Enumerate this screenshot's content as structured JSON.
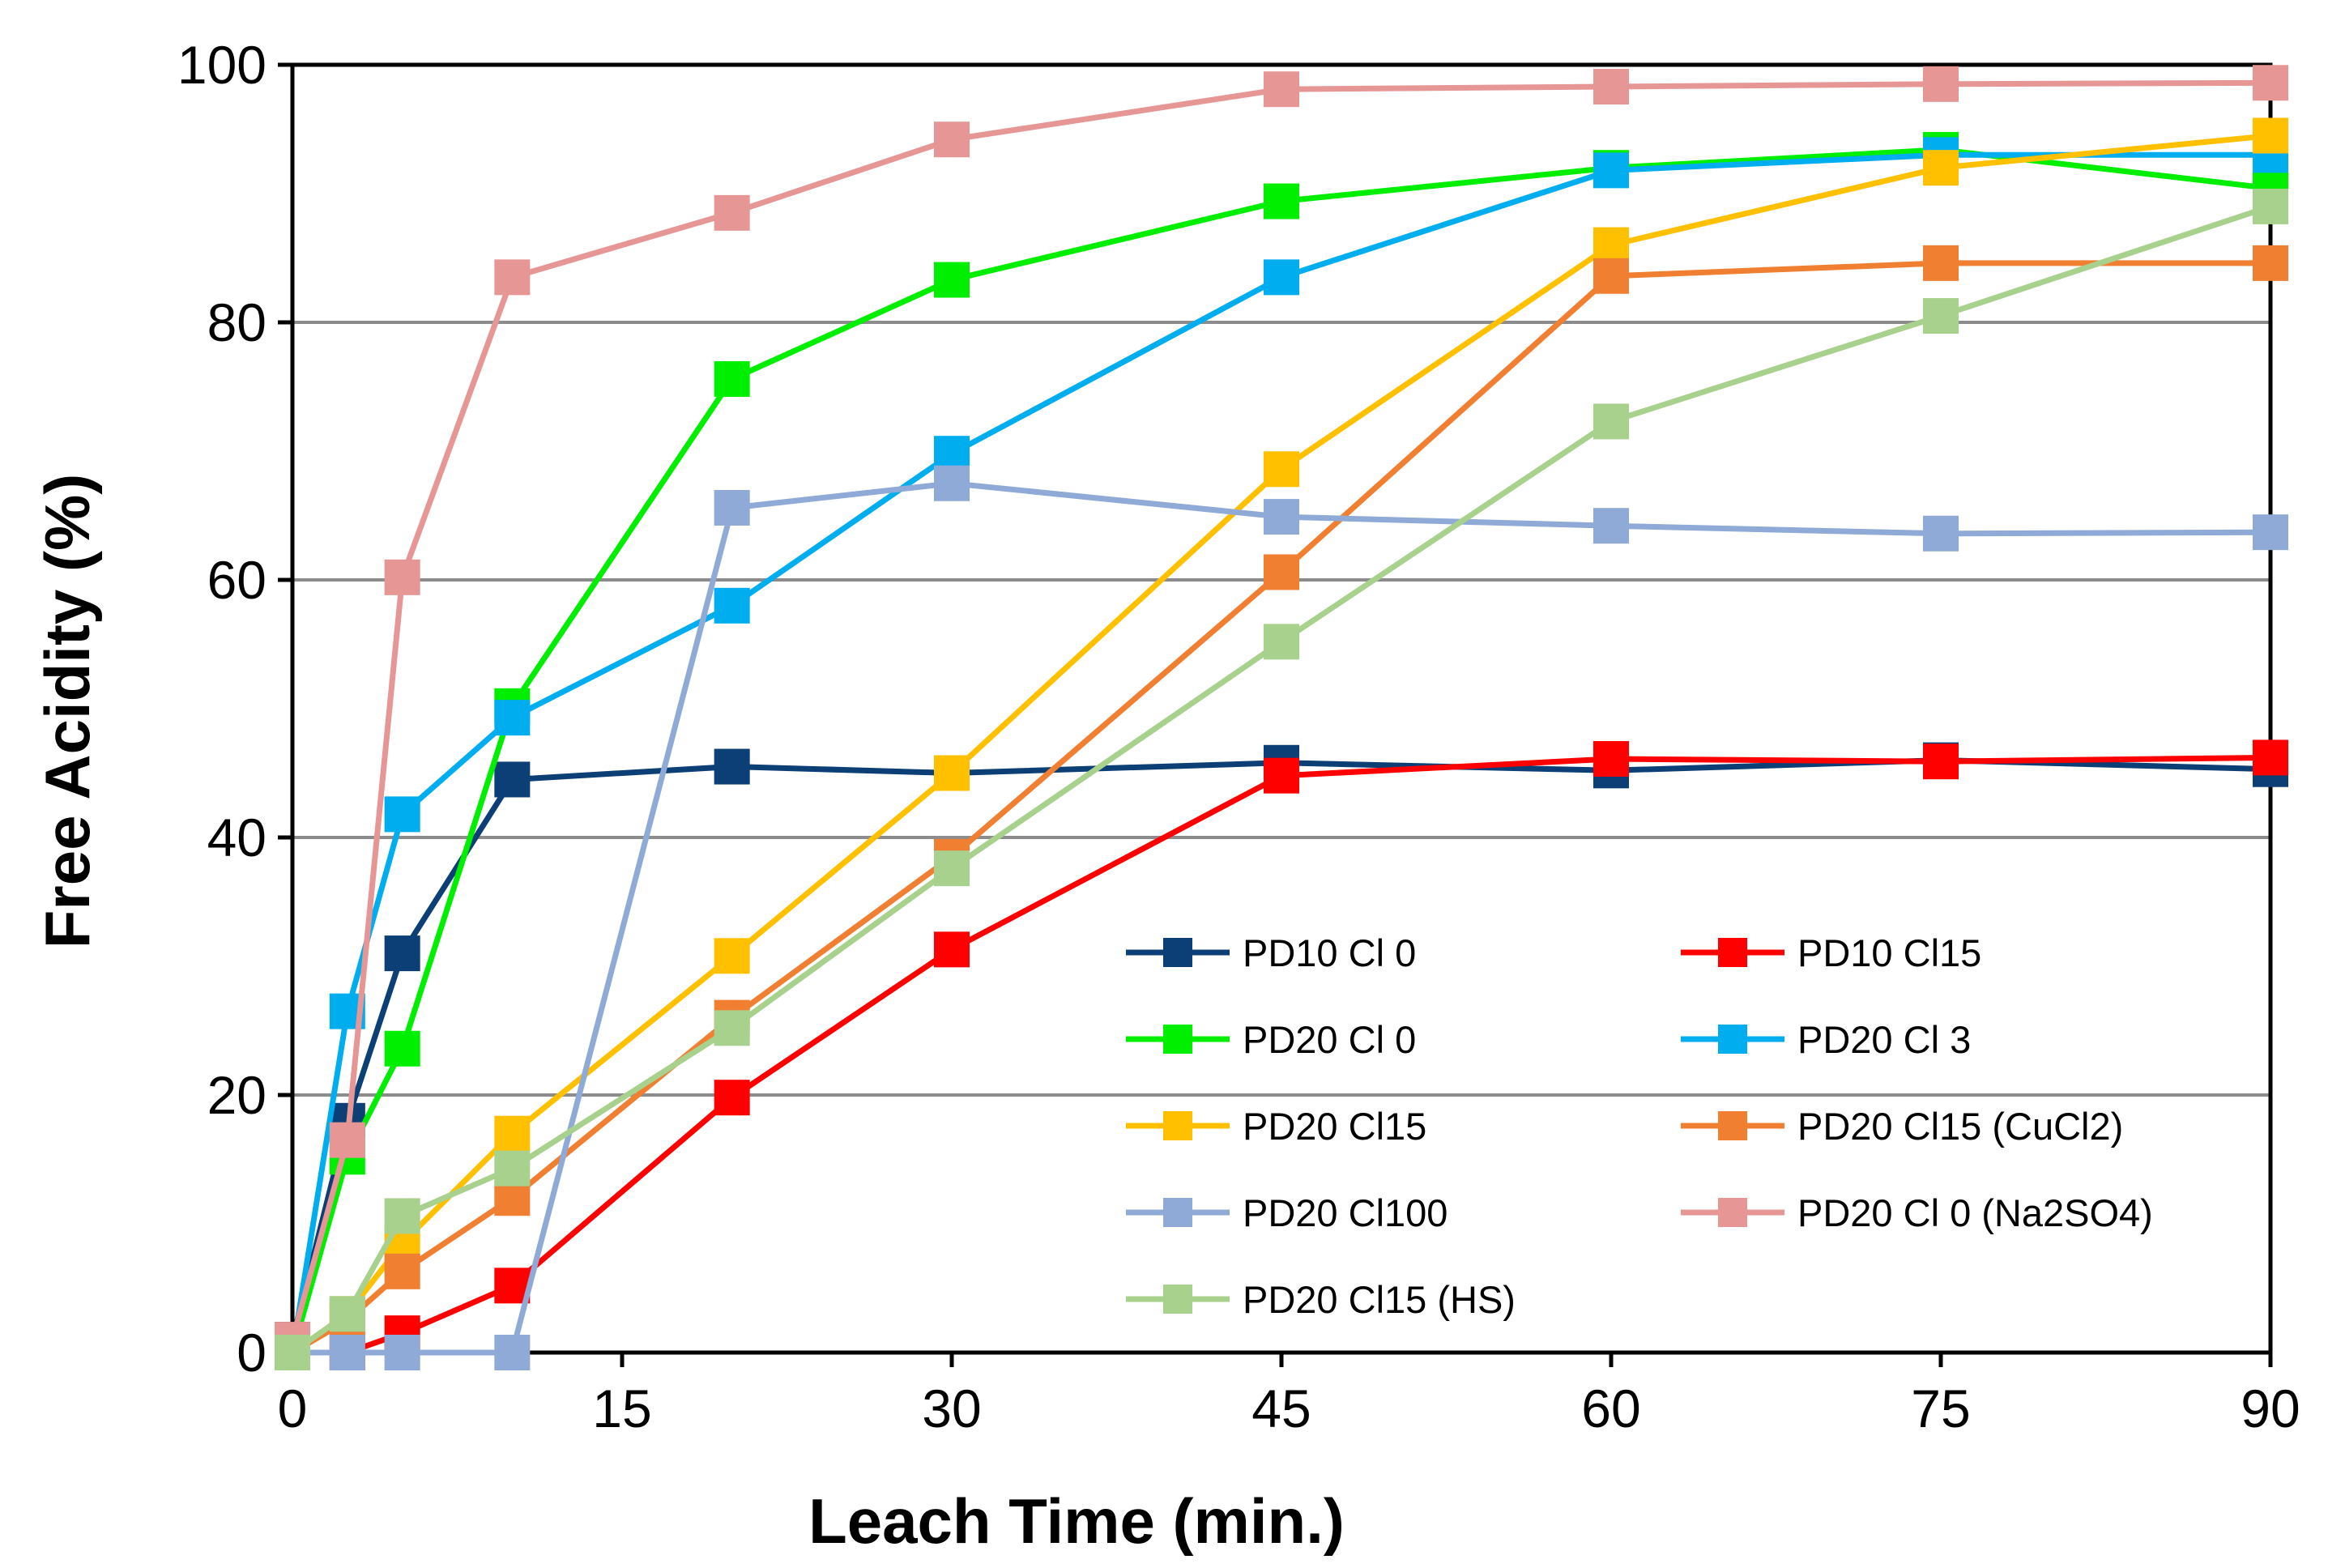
{
  "chart_data": {
    "type": "line",
    "title": "",
    "xlabel": "Leach Time (min.)",
    "ylabel": "Free Acidity (%)",
    "xlim": [
      0,
      90
    ],
    "ylim": [
      0,
      100
    ],
    "xticks": [
      0,
      15,
      30,
      45,
      60,
      75,
      90
    ],
    "yticks": [
      0,
      20,
      40,
      60,
      80,
      100
    ],
    "xtick_labels": [
      "0",
      "15",
      "30",
      "45",
      "60",
      "75",
      "90"
    ],
    "ytick_labels": [
      "0",
      "20",
      "40",
      "60",
      "80",
      "100"
    ],
    "grid": "horizontal",
    "legend_position": "bottom-right",
    "series": [
      {
        "name": "PD10 Cl 0",
        "color": "#0b3f75",
        "x": [
          0,
          2.5,
          5,
          10,
          20,
          30,
          45,
          60,
          75,
          90
        ],
        "y": [
          1,
          18,
          31,
          44.5,
          45.5,
          45,
          45.8,
          45.2,
          46,
          45.3
        ]
      },
      {
        "name": "PD10 Cl15",
        "color": "#ff0000",
        "x": [
          0,
          2.5,
          5,
          10,
          20,
          30,
          45,
          60,
          75,
          90
        ],
        "y": [
          0,
          0,
          1.5,
          5.2,
          19.8,
          31.3,
          44.8,
          46.1,
          45.9,
          46.2
        ]
      },
      {
        "name": "PD20 Cl 0",
        "color": "#00ee00",
        "x": [
          0,
          2.5,
          5,
          10,
          20,
          30,
          45,
          60,
          75,
          90
        ],
        "y": [
          0,
          15.2,
          23.6,
          50.2,
          75.6,
          83.3,
          89.4,
          92,
          93.4,
          90.4
        ]
      },
      {
        "name": "PD20 Cl 3",
        "color": "#00aeef",
        "x": [
          0,
          2.5,
          5,
          10,
          20,
          30,
          45,
          60,
          75,
          90
        ],
        "y": [
          0,
          26.5,
          41.8,
          49.3,
          58,
          69.8,
          83.5,
          91.8,
          93,
          93
        ]
      },
      {
        "name": "PD20 Cl15",
        "color": "#ffc000",
        "x": [
          0,
          2.5,
          5,
          10,
          20,
          30,
          45,
          60,
          75,
          90
        ],
        "y": [
          0,
          3,
          8.5,
          17,
          30.8,
          45,
          68.6,
          86,
          92,
          94.5
        ]
      },
      {
        "name": "PD20 Cl15 (CuCl2)",
        "color": "#f07f32",
        "x": [
          0,
          2.5,
          5,
          10,
          20,
          30,
          45,
          60,
          75,
          90
        ],
        "y": [
          0,
          2.5,
          6.3,
          12,
          26,
          38.5,
          60.6,
          83.6,
          84.6,
          84.6
        ]
      },
      {
        "name": "PD20 Cl100",
        "color": "#8faad6",
        "x": [
          0,
          2.5,
          5,
          10,
          20,
          30,
          45,
          60,
          75,
          90
        ],
        "y": [
          0,
          0,
          0,
          0,
          65.6,
          67.5,
          64.9,
          64.2,
          63.6,
          63.7
        ]
      },
      {
        "name": "PD20 Cl 0 (Na2SO4)",
        "color": "#e59695",
        "x": [
          0,
          2.5,
          5,
          10,
          20,
          30,
          45,
          60,
          75,
          90
        ],
        "y": [
          1,
          16.5,
          60.2,
          83.5,
          88.5,
          94.2,
          98.1,
          98.3,
          98.5,
          98.6
        ]
      },
      {
        "name": "PD20 Cl15 (HS)",
        "color": "#a9d18e",
        "x": [
          0,
          2.5,
          5,
          10,
          20,
          30,
          45,
          60,
          75,
          90
        ],
        "y": [
          0,
          3,
          10.6,
          14.3,
          25.2,
          37.6,
          55.2,
          72.3,
          80.5,
          89
        ]
      }
    ]
  }
}
